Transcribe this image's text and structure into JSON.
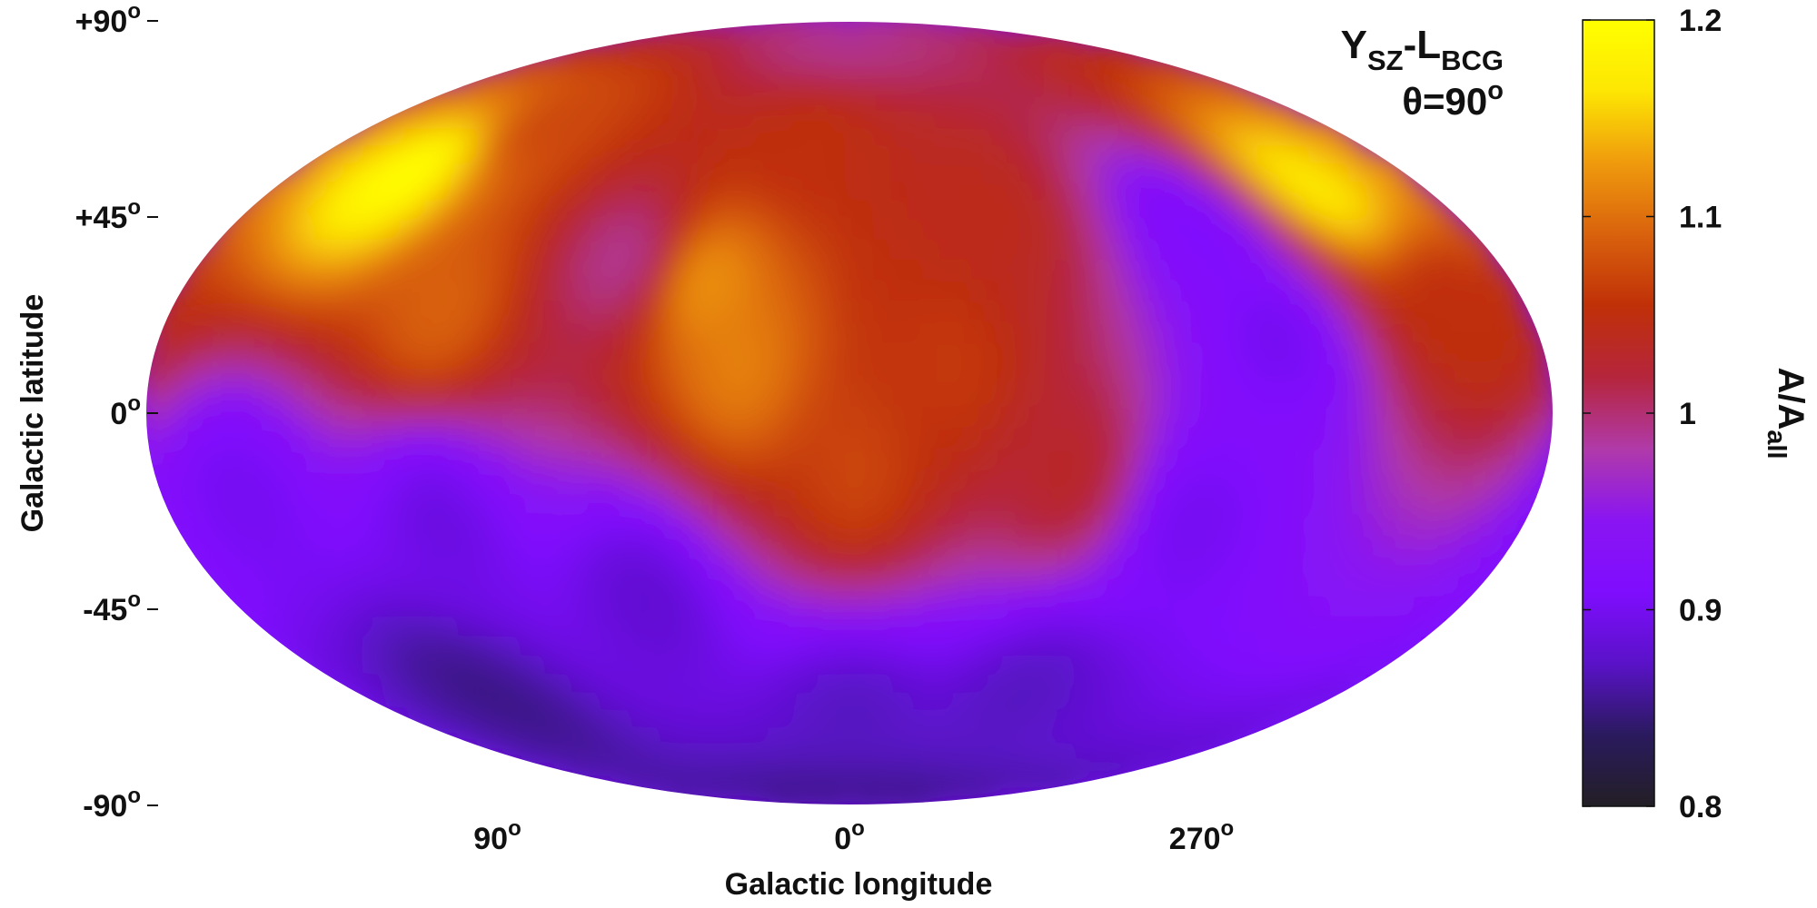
{
  "chart_data": {
    "type": "heatmap",
    "projection": "mollweide",
    "title_main": "Y",
    "title_sub1": "SZ",
    "title_dash": "-L",
    "title_sub2": "BCG",
    "theta_label": "θ=90",
    "theta_sup": "o",
    "xlabel": "Galactic longitude",
    "ylabel": "Galactic latitude",
    "colorbar_label_main": "A/A",
    "colorbar_label_sub": "all",
    "lat_ticks": [
      {
        "value": 90,
        "label": "+90",
        "sup": "o"
      },
      {
        "value": 45,
        "label": "+45",
        "sup": "o"
      },
      {
        "value": 0,
        "label": "0",
        "sup": "o"
      },
      {
        "value": -45,
        "label": "-45",
        "sup": "o"
      },
      {
        "value": -90,
        "label": "-90",
        "sup": "o"
      }
    ],
    "lon_ticks": [
      {
        "value": 90,
        "label": "90",
        "sup": "o"
      },
      {
        "value": 0,
        "label": "0",
        "sup": "o"
      },
      {
        "value": 270,
        "label": "270",
        "sup": "o"
      }
    ],
    "colorbar": {
      "range": [
        0.8,
        1.2
      ],
      "ticks": [
        {
          "value": 1.2,
          "label": "1.2"
        },
        {
          "value": 1.1,
          "label": "1.1"
        },
        {
          "value": 1.0,
          "label": "1"
        },
        {
          "value": 0.9,
          "label": "0.9"
        },
        {
          "value": 0.8,
          "label": "0.8"
        }
      ],
      "colormap": [
        "#231f25",
        "#2a1a5e",
        "#5a12c8",
        "#7f0dfe",
        "#8a15f2",
        "#b03aa8",
        "#b5253c",
        "#c03008",
        "#d9620d",
        "#ef9a0d",
        "#fde603",
        "#ffff00"
      ]
    },
    "sky_regions": [
      {
        "lon": 145,
        "lat": 48,
        "value": 1.2
      },
      {
        "lon": 110,
        "lat": 20,
        "value": 1.09
      },
      {
        "lon": 120,
        "lat": 60,
        "value": 1.07
      },
      {
        "lon": 65,
        "lat": 30,
        "value": 0.99
      },
      {
        "lon": 40,
        "lat": 25,
        "value": 1.12
      },
      {
        "lon": 30,
        "lat": 10,
        "value": 1.11
      },
      {
        "lon": 15,
        "lat": 55,
        "value": 1.05
      },
      {
        "lon": 5,
        "lat": 82,
        "value": 0.99
      },
      {
        "lon": 0,
        "lat": -10,
        "value": 1.07
      },
      {
        "lon": 335,
        "lat": 10,
        "value": 1.06
      },
      {
        "lon": 320,
        "lat": 40,
        "value": 1.04
      },
      {
        "lon": 305,
        "lat": -10,
        "value": 1.03
      },
      {
        "lon": 260,
        "lat": 35,
        "value": 0.91
      },
      {
        "lon": 250,
        "lat": 15,
        "value": 0.9
      },
      {
        "lon": 270,
        "lat": -20,
        "value": 0.9
      },
      {
        "lon": 215,
        "lat": 45,
        "value": 1.17
      },
      {
        "lon": 200,
        "lat": 20,
        "value": 1.05
      },
      {
        "lon": 160,
        "lat": -15,
        "value": 0.9
      },
      {
        "lon": 110,
        "lat": -20,
        "value": 0.89
      },
      {
        "lon": 60,
        "lat": -35,
        "value": 0.88
      },
      {
        "lon": 0,
        "lat": -60,
        "value": 0.87
      },
      {
        "lon": 300,
        "lat": -55,
        "value": 0.87
      },
      {
        "lon": 130,
        "lat": -55,
        "value": 0.85
      },
      {
        "lon": 0,
        "lat": -85,
        "value": 0.85
      }
    ]
  }
}
